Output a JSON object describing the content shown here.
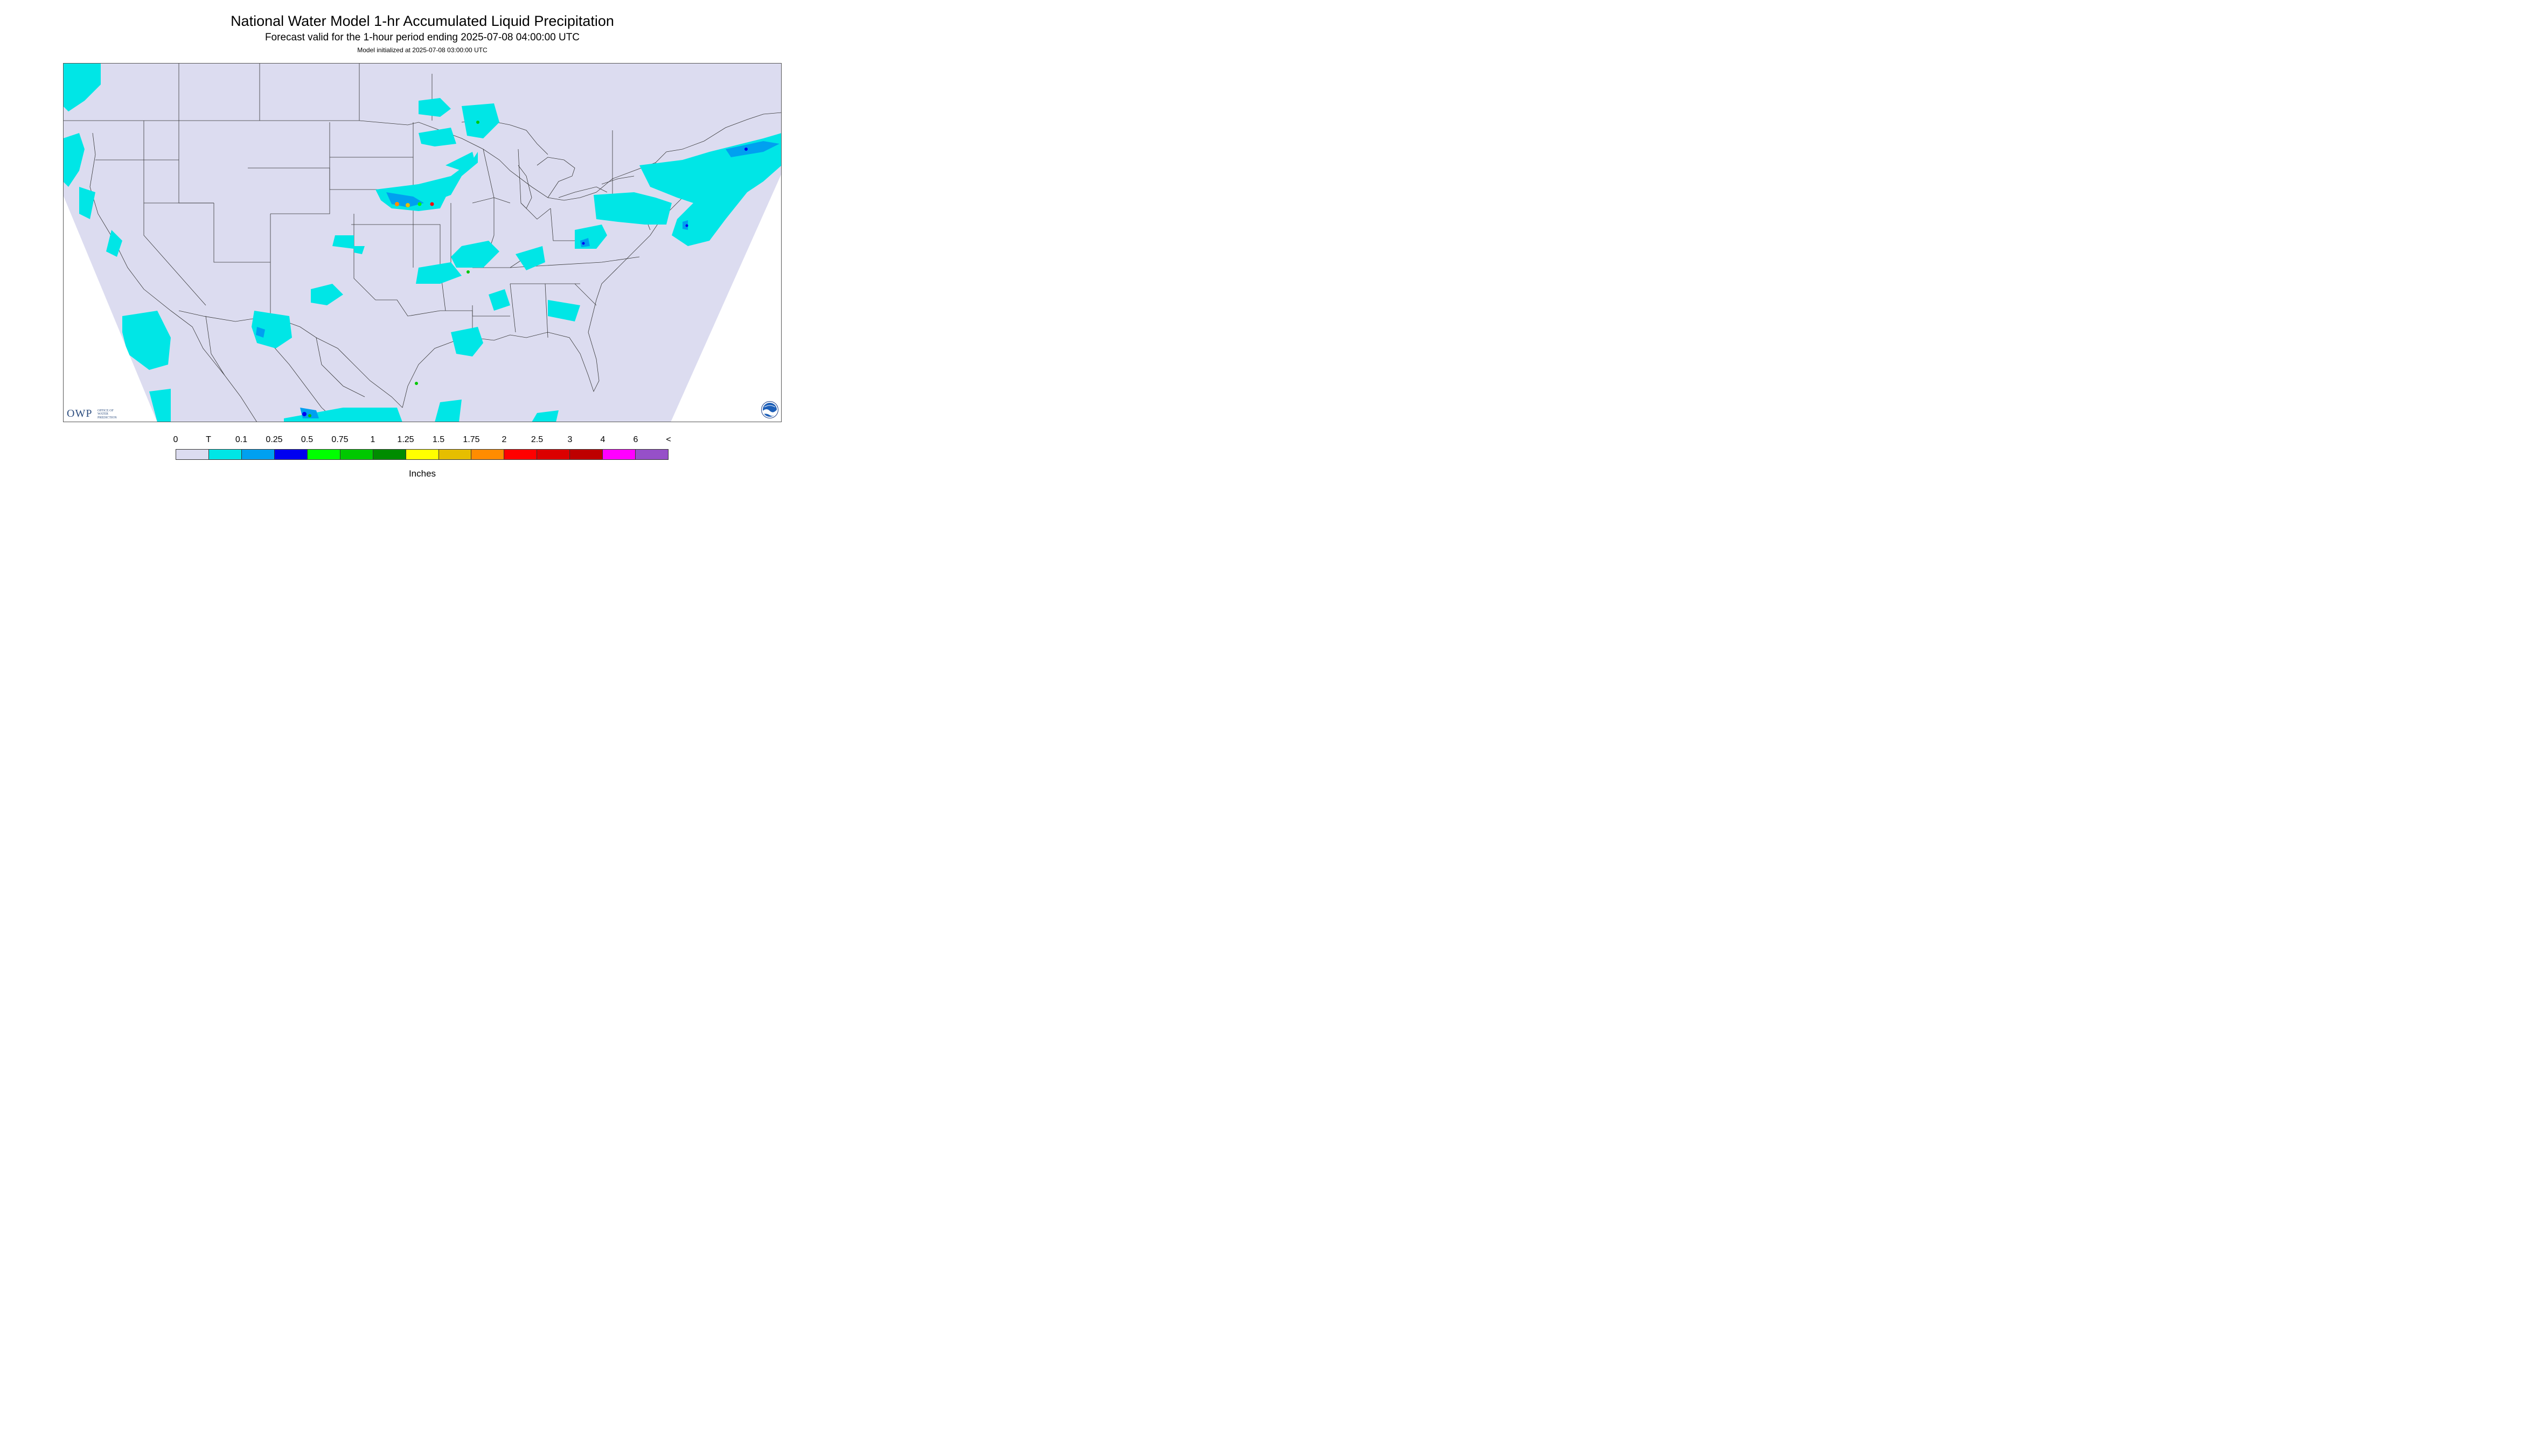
{
  "title": "National Water Model 1-hr Accumulated Liquid Precipitation",
  "subtitle": "Forecast valid for the 1-hour period ending 2025-07-08 04:00:00 UTC",
  "init": "Model initialized at 2025-07-08 03:00:00 UTC",
  "logos": {
    "owp_word": "OWP",
    "owp_sub": [
      "OFFICE OF",
      "WATER",
      "PREDICTION"
    ],
    "noaa_text": "NOAA"
  },
  "legend": {
    "ticks": [
      "0",
      "T",
      "0.1",
      "0.25",
      "0.5",
      "0.75",
      "1",
      "1.25",
      "1.5",
      "1.75",
      "2",
      "2.5",
      "3",
      "4",
      "6",
      "<"
    ],
    "colors": [
      "#dcdcf0",
      "#00e6e6",
      "#00a0f0",
      "#0000f0",
      "#00ff00",
      "#00c800",
      "#008c00",
      "#ffff00",
      "#e6be00",
      "#ff8c00",
      "#ff0000",
      "#dc0000",
      "#be0000",
      "#ff00ff",
      "#9650c8"
    ],
    "units": "Inches"
  },
  "colors": {
    "background": "#dcdcf0",
    "trace": "#00e6e6",
    "light": "#00a0f0",
    "border_lines": "#333333"
  }
}
